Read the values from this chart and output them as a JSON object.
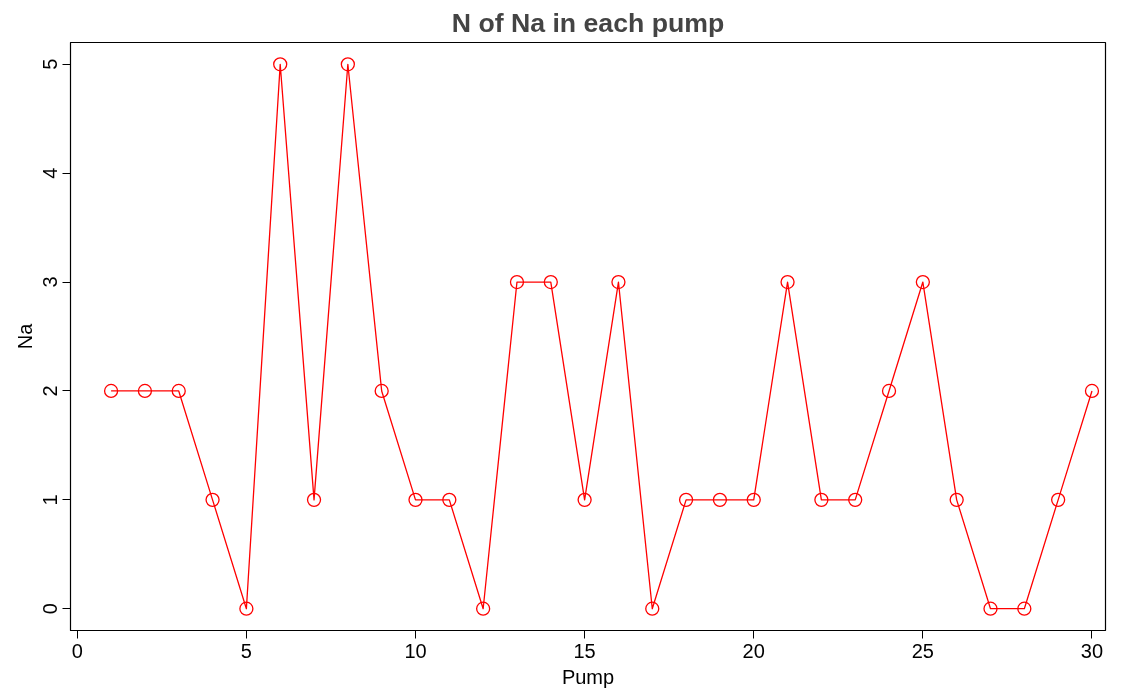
{
  "chart_data": {
    "type": "line",
    "title": "N of Na in each pump",
    "xlabel": "Pump",
    "ylabel": "Na",
    "x": [
      1,
      2,
      3,
      4,
      5,
      6,
      7,
      8,
      9,
      10,
      11,
      12,
      13,
      14,
      15,
      16,
      17,
      18,
      19,
      20,
      21,
      22,
      23,
      24,
      25,
      26,
      27,
      28,
      29,
      30
    ],
    "series": [
      {
        "color": "#ff0000",
        "values": [
          2,
          2,
          2,
          1,
          0,
          5,
          1,
          5,
          2,
          1,
          1,
          0,
          3,
          3,
          1,
          3,
          0,
          1,
          1,
          1,
          3,
          1,
          1,
          2,
          3,
          1,
          0,
          0,
          1,
          2
        ]
      }
    ],
    "xlim": [
      -0.2,
      30.4
    ],
    "ylim": [
      -0.2,
      5.2
    ],
    "xticks": [
      0,
      5,
      10,
      15,
      20,
      25,
      30
    ],
    "yticks": [
      0,
      1,
      2,
      3,
      4,
      5
    ],
    "grid": false,
    "marker": "circle",
    "line_style": "solid"
  }
}
